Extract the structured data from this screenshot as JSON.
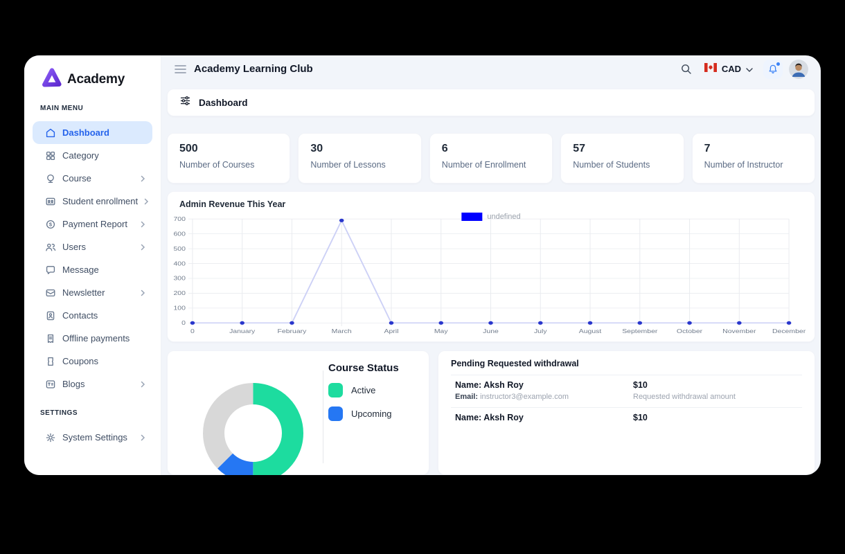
{
  "brand": {
    "name": "Academy"
  },
  "sidebar": {
    "sections": [
      {
        "label": "MAIN MENU",
        "items": [
          {
            "label": "Dashboard",
            "icon": "home",
            "active": true,
            "chevron": false
          },
          {
            "label": "Category",
            "icon": "grid",
            "active": false,
            "chevron": false
          },
          {
            "label": "Course",
            "icon": "course",
            "active": false,
            "chevron": true
          },
          {
            "label": "Student enrollment",
            "icon": "enrollment",
            "active": false,
            "chevron": true
          },
          {
            "label": "Payment Report",
            "icon": "dollar-circle",
            "active": false,
            "chevron": true
          },
          {
            "label": "Users",
            "icon": "users",
            "active": false,
            "chevron": true
          },
          {
            "label": "Message",
            "icon": "chat",
            "active": false,
            "chevron": false
          },
          {
            "label": "Newsletter",
            "icon": "mail",
            "active": false,
            "chevron": true
          },
          {
            "label": "Contacts",
            "icon": "contact-card",
            "active": false,
            "chevron": false
          },
          {
            "label": "Offline payments",
            "icon": "receipt",
            "active": false,
            "chevron": false
          },
          {
            "label": "Coupons",
            "icon": "ticket",
            "active": false,
            "chevron": false
          },
          {
            "label": "Blogs",
            "icon": "blog",
            "active": false,
            "chevron": true
          }
        ]
      },
      {
        "label": "SETTINGS",
        "items": [
          {
            "label": "System Settings",
            "icon": "gear",
            "active": false,
            "chevron": true
          }
        ]
      }
    ]
  },
  "header": {
    "title": "Academy Learning Club",
    "currency": "CAD"
  },
  "breadcrumb": {
    "label": "Dashboard"
  },
  "stats": [
    {
      "value": "500",
      "label": "Number of Courses"
    },
    {
      "value": "30",
      "label": "Number of Lessons"
    },
    {
      "value": "6",
      "label": "Number of Enrollment"
    },
    {
      "value": "57",
      "label": "Number of Students"
    },
    {
      "value": "7",
      "label": "Number of Instructor"
    }
  ],
  "chart_data": {
    "type": "line",
    "title": "Admin Revenue This Year",
    "legend": [
      {
        "label": "undefined",
        "color": "#0000ff"
      }
    ],
    "categories": [
      "0",
      "January",
      "February",
      "March",
      "April",
      "May",
      "June",
      "July",
      "August",
      "September",
      "October",
      "November",
      "December"
    ],
    "values": [
      0,
      0,
      0,
      690,
      0,
      0,
      0,
      0,
      0,
      0,
      0,
      0,
      0
    ],
    "ylim": [
      0,
      700
    ],
    "yticks": [
      0,
      100,
      200,
      300,
      400,
      500,
      600,
      700
    ],
    "grid": true,
    "legend_position": "top-center",
    "line_color": "#cdd1f6",
    "point_color": "#2936cc"
  },
  "course_status": {
    "title": "Course Status",
    "legend": [
      {
        "label": "Active",
        "color": "#1ddc9f"
      },
      {
        "label": "Upcoming",
        "color": "#2577f3"
      }
    ],
    "donut": {
      "segments": [
        {
          "name": "active",
          "color": "#1ddc9f",
          "pct": 50
        },
        {
          "name": "upcoming",
          "color": "#2577f3",
          "pct": 12.5
        },
        {
          "name": "remaining",
          "color": "#d8d8d8",
          "pct": 37.5
        }
      ]
    }
  },
  "withdrawals": {
    "title": "Pending Requested withdrawal",
    "rows": [
      {
        "name_label": "Name:",
        "name": "Aksh Roy",
        "email_label": "Email:",
        "email": "instructor3@example.com",
        "amount": "$10",
        "note": "Requested withdrawal amount"
      },
      {
        "name_label": "Name:",
        "name": "Aksh Roy",
        "amount": "$10"
      }
    ]
  }
}
